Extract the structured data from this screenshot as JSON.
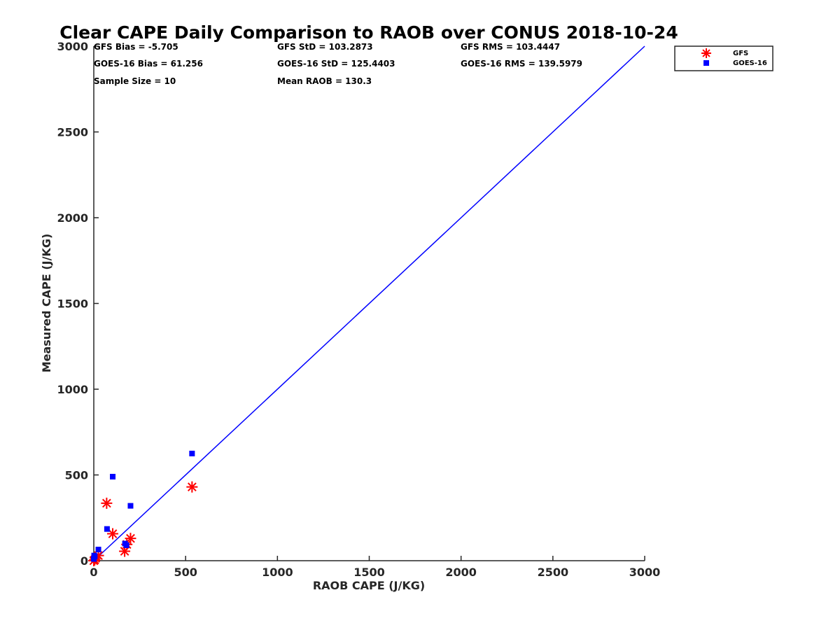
{
  "chart_data": {
    "type": "scatter",
    "title": "Clear CAPE Daily Comparison to RAOB over CONUS 2018-10-24",
    "xlabel": "RAOB CAPE (J/KG)",
    "ylabel": "Measured CAPE (J/KG)",
    "xlim": [
      0,
      3000
    ],
    "ylim": [
      0,
      3000
    ],
    "x_ticks": [
      0,
      500,
      1000,
      1500,
      2000,
      2500,
      3000
    ],
    "y_ticks": [
      0,
      500,
      1000,
      1500,
      2000,
      2500,
      3000
    ],
    "grid": false,
    "legend_placement": "top-right outside",
    "reference_line": {
      "x": [
        0,
        3000
      ],
      "y": [
        0,
        3000
      ],
      "color": "#0000ff"
    },
    "series": [
      {
        "name": "GFS",
        "marker": "asterisk",
        "color": "#ff0000",
        "points": [
          [
            0,
            0
          ],
          [
            5,
            5
          ],
          [
            10,
            15
          ],
          [
            25,
            30
          ],
          [
            70,
            335
          ],
          [
            103,
            157
          ],
          [
            168,
            55
          ],
          [
            180,
            95
          ],
          [
            200,
            130
          ],
          [
            535,
            430
          ]
        ]
      },
      {
        "name": "GOES-16",
        "marker": "square",
        "color": "#0000ff",
        "points": [
          [
            0,
            10
          ],
          [
            2,
            30
          ],
          [
            5,
            25
          ],
          [
            25,
            65
          ],
          [
            72,
            185
          ],
          [
            103,
            490
          ],
          [
            170,
            100
          ],
          [
            178,
            90
          ],
          [
            200,
            320
          ],
          [
            535,
            625
          ]
        ]
      }
    ],
    "annotations": [
      "GFS Bias = -5.705",
      "GFS StD = 103.2873",
      "GFS RMS = 103.4447",
      "GOES-16 Bias = 61.256",
      "GOES-16 StD = 125.4403",
      "GOES-16 RMS = 139.5979",
      "Sample Size = 10",
      "Mean RAOB = 130.3"
    ]
  }
}
